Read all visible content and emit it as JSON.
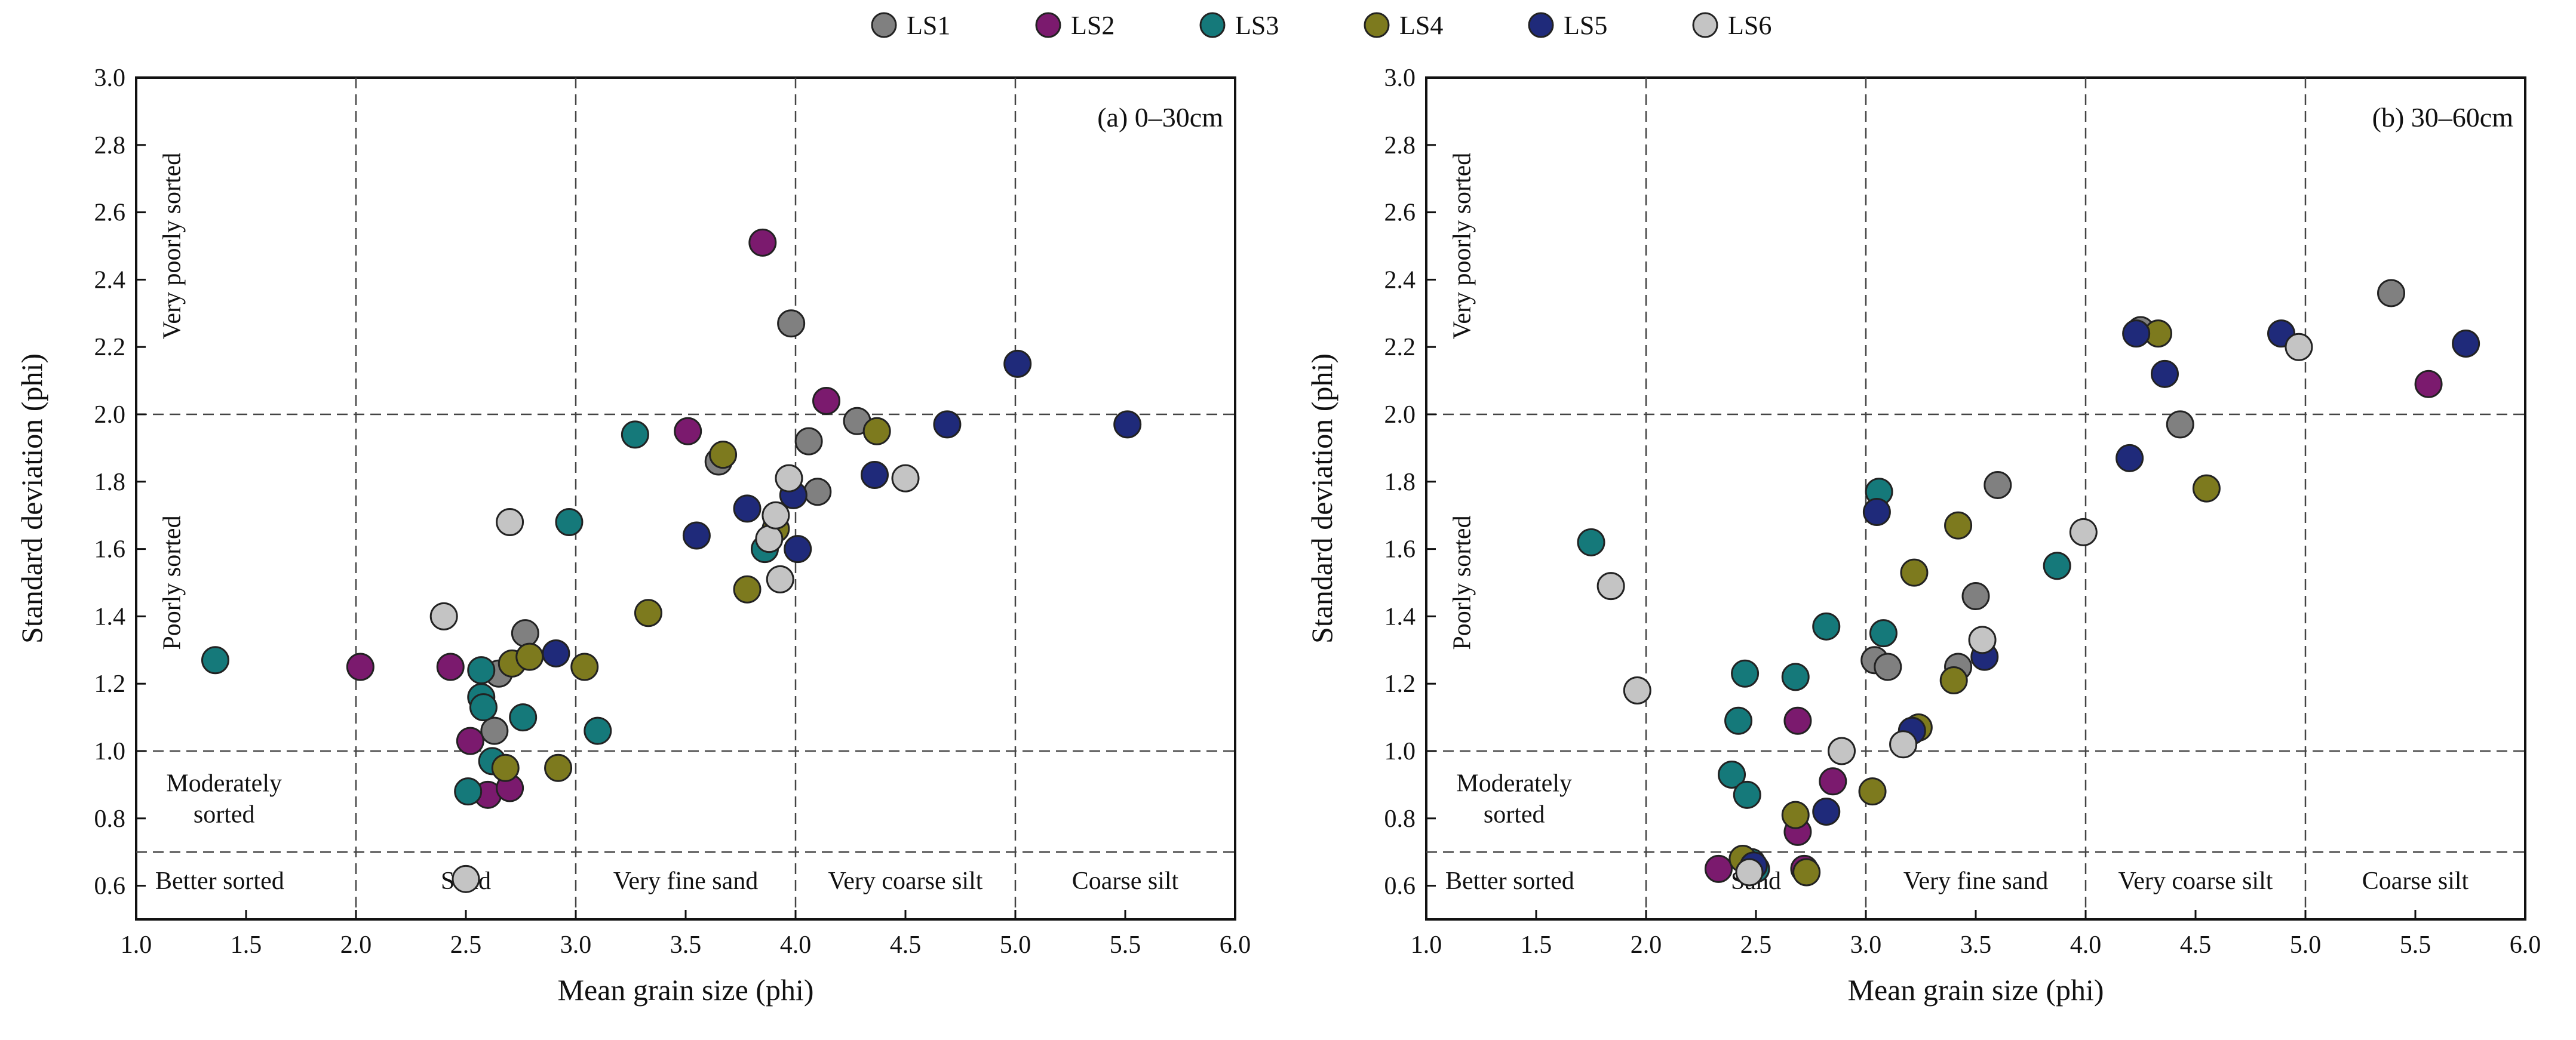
{
  "legend": {
    "series": [
      {
        "name": "LS1",
        "color": "#808080"
      },
      {
        "name": "LS2",
        "color": "#7b1a6e"
      },
      {
        "name": "LS3",
        "color": "#15797a"
      },
      {
        "name": "LS4",
        "color": "#7d7a1e"
      },
      {
        "name": "LS5",
        "color": "#1f2a7a"
      },
      {
        "name": "LS6",
        "color": "#c4c4c4"
      }
    ]
  },
  "chart_data": [
    {
      "type": "scatter",
      "panel_label": "(a) 0–30cm",
      "xlabel": "Mean grain size (phi)",
      "ylabel": "Standard deviation (phi)",
      "xlim": [
        1.0,
        6.0
      ],
      "ylim": [
        0.5,
        3.0
      ],
      "xticks": [
        "1.0",
        "1.5",
        "2.0",
        "2.5",
        "3.0",
        "3.5",
        "4.0",
        "4.5",
        "5.0",
        "5.5",
        "6.0"
      ],
      "yticks": [
        "0.6",
        "0.8",
        "1.0",
        "1.2",
        "1.4",
        "1.6",
        "1.8",
        "2.0",
        "2.2",
        "2.4",
        "2.6",
        "2.8",
        "3.0"
      ],
      "vlines": [
        2.0,
        3.0,
        4.0,
        5.0
      ],
      "hlines": [
        0.7,
        1.0,
        2.0
      ],
      "x_class_labels": [
        {
          "text": "Better sorted",
          "x": 1.38
        },
        {
          "text": "Sand",
          "x": 2.5
        },
        {
          "text": "Very fine sand",
          "x": 3.5
        },
        {
          "text": "Very coarse silt",
          "x": 4.5
        },
        {
          "text": "Coarse silt",
          "x": 5.5
        }
      ],
      "sorting_labels": [
        {
          "lines": [
            "Very poorly sorted"
          ],
          "rotated": true,
          "x": 1.2,
          "y": 2.5
        },
        {
          "lines": [
            "Poorly sorted"
          ],
          "rotated": true,
          "x": 1.2,
          "y": 1.5
        },
        {
          "lines": [
            "Moderately",
            "sorted"
          ],
          "rotated": false,
          "x": 1.4,
          "y": 0.88
        }
      ],
      "series": [
        {
          "name": "LS1",
          "points": [
            [
              2.63,
              1.06
            ],
            [
              2.65,
              1.23
            ],
            [
              2.77,
              1.35
            ],
            [
              3.65,
              1.86
            ],
            [
              3.98,
              2.27
            ],
            [
              4.06,
              1.92
            ],
            [
              4.1,
              1.77
            ],
            [
              4.28,
              1.98
            ]
          ]
        },
        {
          "name": "LS2",
          "points": [
            [
              2.02,
              1.25
            ],
            [
              2.43,
              1.25
            ],
            [
              2.52,
              1.03
            ],
            [
              2.6,
              0.87
            ],
            [
              2.7,
              0.89
            ],
            [
              3.51,
              1.95
            ],
            [
              3.85,
              2.51
            ],
            [
              4.14,
              2.04
            ]
          ]
        },
        {
          "name": "LS3",
          "points": [
            [
              1.36,
              1.27
            ],
            [
              2.51,
              0.88
            ],
            [
              2.57,
              1.24
            ],
            [
              2.57,
              1.16
            ],
            [
              2.58,
              1.13
            ],
            [
              2.62,
              0.97
            ],
            [
              2.76,
              1.1
            ],
            [
              2.97,
              1.68
            ],
            [
              3.1,
              1.06
            ],
            [
              3.27,
              1.94
            ],
            [
              3.86,
              1.6
            ]
          ]
        },
        {
          "name": "LS4",
          "points": [
            [
              2.68,
              0.95
            ],
            [
              2.71,
              1.26
            ],
            [
              2.79,
              1.28
            ],
            [
              2.92,
              0.95
            ],
            [
              3.04,
              1.25
            ],
            [
              3.33,
              1.41
            ],
            [
              3.67,
              1.88
            ],
            [
              3.78,
              1.48
            ],
            [
              3.91,
              1.66
            ],
            [
              4.37,
              1.95
            ]
          ]
        },
        {
          "name": "LS5",
          "points": [
            [
              2.91,
              1.29
            ],
            [
              3.55,
              1.64
            ],
            [
              3.78,
              1.72
            ],
            [
              3.99,
              1.76
            ],
            [
              4.01,
              1.6
            ],
            [
              4.36,
              1.82
            ],
            [
              4.69,
              1.97
            ],
            [
              5.01,
              2.15
            ],
            [
              5.51,
              1.97
            ]
          ]
        },
        {
          "name": "LS6",
          "points": [
            [
              2.4,
              1.4
            ],
            [
              2.5,
              0.62
            ],
            [
              2.7,
              1.68
            ],
            [
              3.88,
              1.63
            ],
            [
              3.91,
              1.7
            ],
            [
              3.93,
              1.51
            ],
            [
              3.97,
              1.81
            ],
            [
              4.5,
              1.81
            ]
          ]
        }
      ]
    },
    {
      "type": "scatter",
      "panel_label": "(b) 30–60cm",
      "xlabel": "Mean grain size (phi)",
      "ylabel": "Standard deviation (phi)",
      "xlim": [
        1.0,
        6.0
      ],
      "ylim": [
        0.5,
        3.0
      ],
      "xticks": [
        "1.0",
        "1.5",
        "2.0",
        "2.5",
        "3.0",
        "3.5",
        "4.0",
        "4.5",
        "5.0",
        "5.5",
        "6.0"
      ],
      "yticks": [
        "0.6",
        "0.8",
        "1.0",
        "1.2",
        "1.4",
        "1.6",
        "1.8",
        "2.0",
        "2.2",
        "2.4",
        "2.6",
        "2.8",
        "3.0"
      ],
      "vlines": [
        2.0,
        3.0,
        4.0,
        5.0
      ],
      "hlines": [
        0.7,
        1.0,
        2.0
      ],
      "x_class_labels": [
        {
          "text": "Better sorted",
          "x": 1.38
        },
        {
          "text": "Sand",
          "x": 2.5
        },
        {
          "text": "Very fine sand",
          "x": 3.5
        },
        {
          "text": "Very coarse silt",
          "x": 4.5
        },
        {
          "text": "Coarse silt",
          "x": 5.5
        }
      ],
      "sorting_labels": [
        {
          "lines": [
            "Very poorly sorted"
          ],
          "rotated": true,
          "x": 1.2,
          "y": 2.5
        },
        {
          "lines": [
            "Poorly sorted"
          ],
          "rotated": true,
          "x": 1.2,
          "y": 1.5
        },
        {
          "lines": [
            "Moderately",
            "sorted"
          ],
          "rotated": false,
          "x": 1.4,
          "y": 0.88
        }
      ],
      "series": [
        {
          "name": "LS1",
          "points": [
            [
              3.04,
              1.27
            ],
            [
              3.1,
              1.25
            ],
            [
              3.42,
              1.25
            ],
            [
              3.5,
              1.46
            ],
            [
              3.6,
              1.79
            ],
            [
              4.25,
              2.25
            ],
            [
              4.43,
              1.97
            ],
            [
              5.39,
              2.36
            ]
          ]
        },
        {
          "name": "LS2",
          "points": [
            [
              2.33,
              0.65
            ],
            [
              2.69,
              1.09
            ],
            [
              2.69,
              0.76
            ],
            [
              2.72,
              0.65
            ],
            [
              2.85,
              0.91
            ],
            [
              5.56,
              2.09
            ]
          ]
        },
        {
          "name": "LS3",
          "points": [
            [
              1.75,
              1.62
            ],
            [
              2.39,
              0.93
            ],
            [
              2.42,
              1.09
            ],
            [
              2.45,
              1.23
            ],
            [
              2.46,
              0.87
            ],
            [
              2.48,
              0.67
            ],
            [
              2.5,
              0.65
            ],
            [
              2.68,
              1.22
            ],
            [
              2.82,
              1.37
            ],
            [
              3.06,
              1.77
            ],
            [
              3.08,
              1.35
            ],
            [
              3.87,
              1.55
            ]
          ]
        },
        {
          "name": "LS4",
          "points": [
            [
              2.44,
              0.68
            ],
            [
              2.68,
              0.81
            ],
            [
              2.73,
              0.64
            ],
            [
              3.03,
              0.88
            ],
            [
              3.22,
              1.53
            ],
            [
              3.24,
              1.07
            ],
            [
              3.4,
              1.21
            ],
            [
              3.42,
              1.67
            ],
            [
              4.33,
              2.24
            ],
            [
              4.55,
              1.78
            ]
          ]
        },
        {
          "name": "LS5",
          "points": [
            [
              2.49,
              0.66
            ],
            [
              2.82,
              0.82
            ],
            [
              3.05,
              1.71
            ],
            [
              3.21,
              1.06
            ],
            [
              3.54,
              1.28
            ],
            [
              4.2,
              1.87
            ],
            [
              4.23,
              2.24
            ],
            [
              4.36,
              2.12
            ],
            [
              4.89,
              2.24
            ],
            [
              5.73,
              2.21
            ]
          ]
        },
        {
          "name": "LS6",
          "points": [
            [
              1.84,
              1.49
            ],
            [
              1.96,
              1.18
            ],
            [
              2.47,
              0.64
            ],
            [
              2.89,
              1.0
            ],
            [
              3.17,
              1.02
            ],
            [
              3.53,
              1.33
            ],
            [
              3.99,
              1.65
            ],
            [
              4.97,
              2.2
            ]
          ]
        }
      ]
    }
  ]
}
